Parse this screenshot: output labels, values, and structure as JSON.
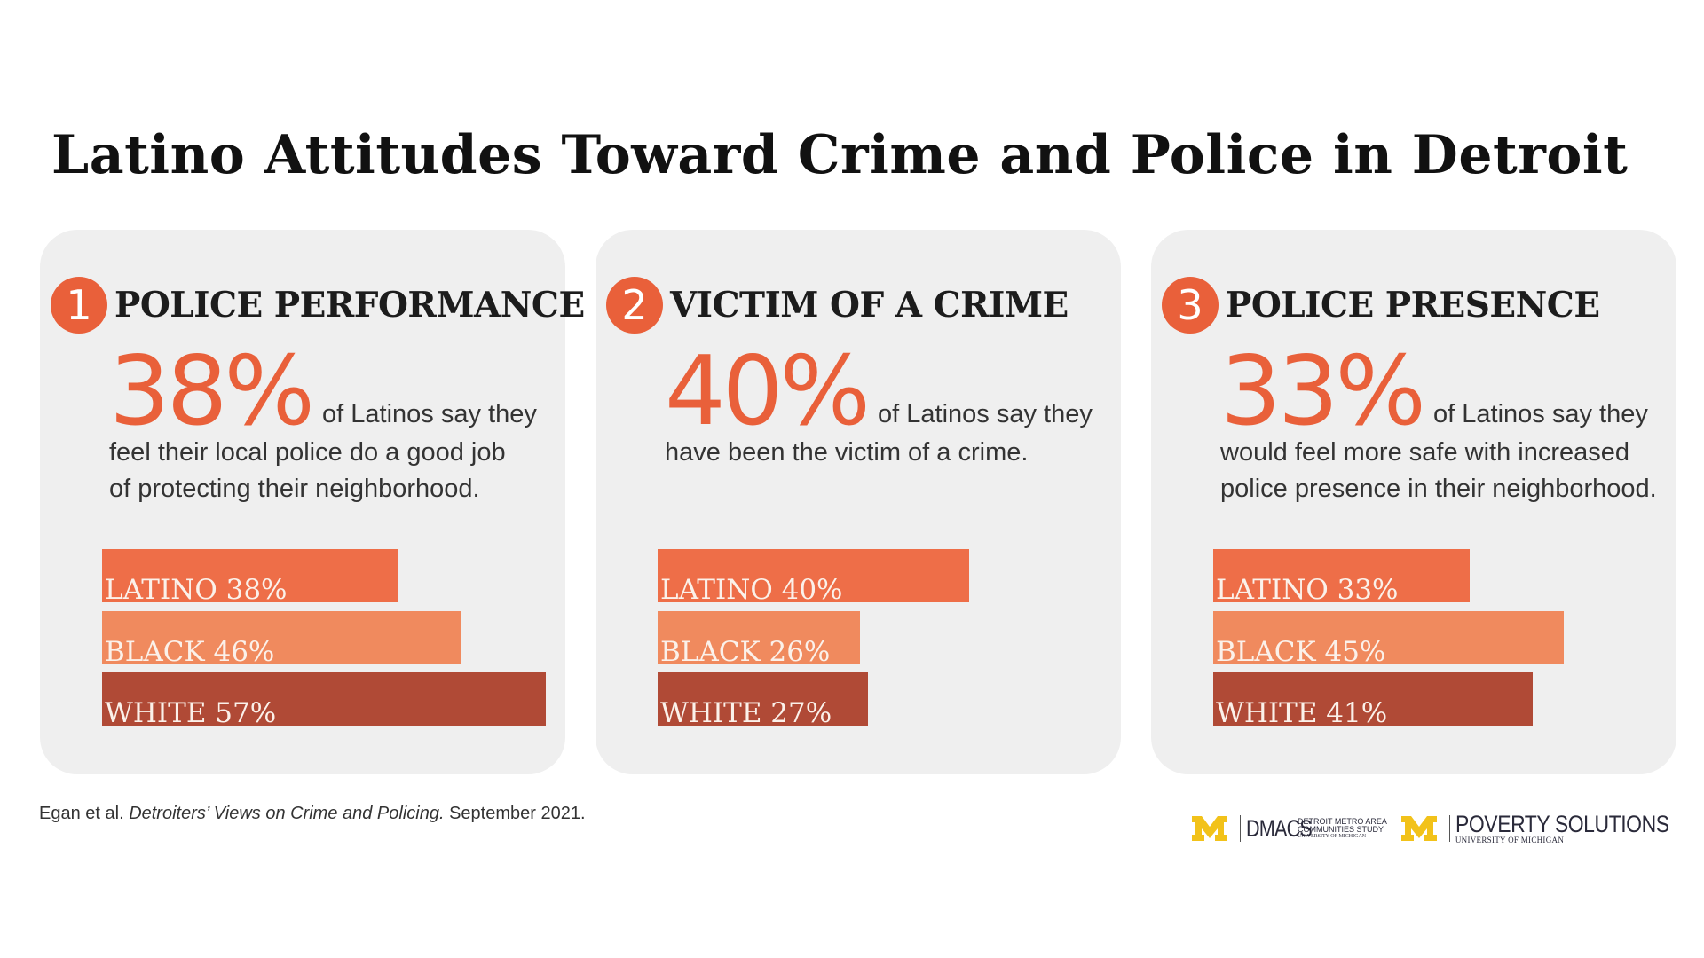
{
  "title": "Latino Attitudes Toward Crime and Police in Detroit",
  "colors": {
    "accent": "#e9603a",
    "latino_bar": "#ee6e48",
    "black_bar": "#f08a5e",
    "white_bar": "#b04a36",
    "panel_bg": "#efefef"
  },
  "chart_data": [
    {
      "type": "bar",
      "number": "1",
      "heading": "POLICE PERFORMANCE",
      "percent": "38%",
      "lead_text": "of Latinos say they",
      "rest_lines": [
        "feel their local police do a good job",
        "of protecting their neighborhood."
      ],
      "categories": [
        "LATINO",
        "BLACK",
        "WHITE"
      ],
      "values": [
        38,
        46,
        57
      ],
      "labels": [
        "LATINO 38%",
        "BLACK 46%",
        "WHITE 57%"
      ]
    },
    {
      "type": "bar",
      "number": "2",
      "heading": "VICTIM OF A CRIME",
      "percent": "40%",
      "lead_text": "of Latinos say they",
      "rest_lines": [
        "have been the victim of a crime."
      ],
      "categories": [
        "LATINO",
        "BLACK",
        "WHITE"
      ],
      "values": [
        40,
        26,
        27
      ],
      "labels": [
        "LATINO 40%",
        "BLACK 26%",
        "WHITE 27%"
      ]
    },
    {
      "type": "bar",
      "number": "3",
      "heading": "POLICE PRESENCE",
      "percent": "33%",
      "lead_text": "of Latinos say they",
      "rest_lines": [
        "would feel more safe with increased",
        "police presence in their neighborhood."
      ],
      "categories": [
        "LATINO",
        "BLACK",
        "WHITE"
      ],
      "values": [
        33,
        45,
        41
      ],
      "labels": [
        "LATINO 33%",
        "BLACK 45%",
        "WHITE 41%"
      ]
    }
  ],
  "footer": {
    "author": "Egan et al.",
    "work": "Detroiters’ Views on Crime and Policing.",
    "date": "September 2021."
  },
  "logos": {
    "dmacs": "DMACS",
    "dmacs_line1": "DETROIT METRO AREA",
    "dmacs_line2": "COMMUNITIES STUDY",
    "dmacs_line3": "UNIVERSITY OF MICHIGAN",
    "poverty": "POVERTY SOLUTIONS",
    "poverty_sub": "UNIVERSITY OF MICHIGAN",
    "m_color": "#f2c21a"
  }
}
